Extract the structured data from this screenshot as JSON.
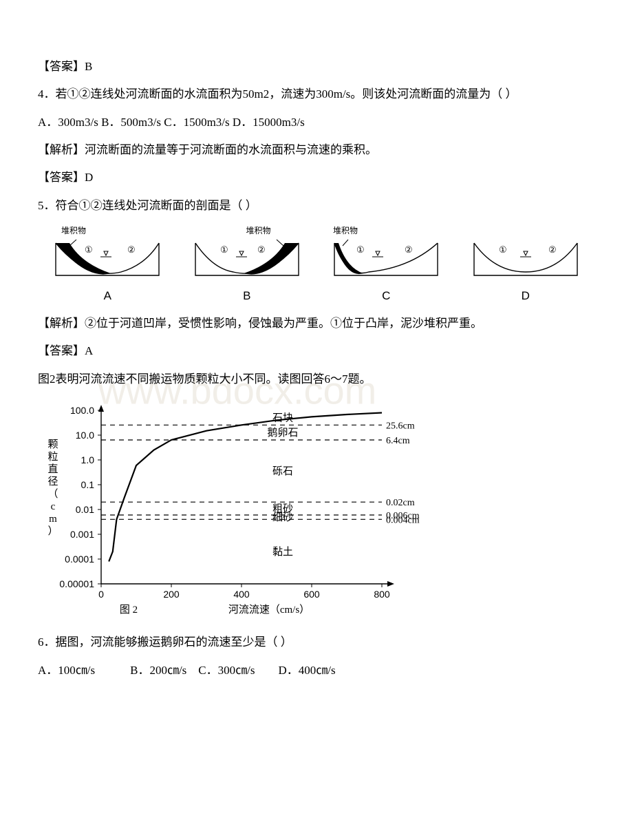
{
  "q3": {
    "answerPrefix": "【答案】",
    "answer": "B"
  },
  "q4": {
    "text": "4．若①②连线处河流断面的水流面积为50m2，流速为300m/s。则该处河流断面的流量为（ ）",
    "options": "A．300m3/s B．500m3/s C．1500m3/s D．15000m3/s",
    "explPrefix": "【解析】",
    "expl": "河流断面的流量等于河流断面的水流面积与流速的乘积。",
    "answerPrefix": "【答案】",
    "answer": "D"
  },
  "q5": {
    "text": "5．符合①②连线处河流断面的剖面是（ ）",
    "depositLabel": "堆积物",
    "diagrams": {
      "A": {
        "label": "A"
      },
      "B": {
        "label": "B"
      },
      "C": {
        "label": "C"
      },
      "D": {
        "label": "D"
      }
    },
    "explPrefix": "【解析】",
    "expl": "②位于河道凹岸，受惯性影响，侵蚀最为严重。①位于凸岸，泥沙堆积严重。",
    "answerPrefix": "【答案】",
    "answer": "A"
  },
  "intro67": "图2表明河流流速不同搬运物质颗粒大小不同。读图回答6～7题。",
  "watermark": "www.bdocx.com",
  "chart": {
    "type": "line",
    "x_axis_label": "河流流速（cm/s）",
    "y_axis_label": "颗粒直径（cm）",
    "figure_label": "图 2",
    "x_ticks": [
      0,
      200,
      400,
      600,
      800
    ],
    "y_ticks": [
      "100.0",
      "10.0",
      "1.0",
      "0.1",
      "0.01",
      "0.001",
      "0.0001",
      "0.00001"
    ],
    "y_scale": "log",
    "categories": [
      {
        "name": "石块",
        "boundary_cm": "25.6cm"
      },
      {
        "name": "鹅卵石",
        "boundary_cm": "6.4cm"
      },
      {
        "name": "砾石",
        "boundary_cm": "0.02cm"
      },
      {
        "name": "粗砂",
        "boundary_cm": "0.006cm"
      },
      {
        "name": "细砂",
        "boundary_cm": "0.004cm"
      },
      {
        "name": "黏土",
        "boundary_cm": null
      }
    ],
    "curve_points": [
      {
        "x": 22,
        "y": 8e-05
      },
      {
        "x": 33,
        "y": 0.0002
      },
      {
        "x": 44,
        "y": 0.004
      },
      {
        "x": 66,
        "y": 0.03
      },
      {
        "x": 100,
        "y": 0.6
      },
      {
        "x": 150,
        "y": 2.5
      },
      {
        "x": 200,
        "y": 6.4
      },
      {
        "x": 300,
        "y": 15
      },
      {
        "x": 400,
        "y": 25.6
      },
      {
        "x": 500,
        "y": 40
      },
      {
        "x": 600,
        "y": 55
      },
      {
        "x": 700,
        "y": 68
      },
      {
        "x": 800,
        "y": 80
      }
    ],
    "axis_color": "#000000",
    "curve_color": "#000000",
    "dash_color": "#000000",
    "background": "#ffffff",
    "font_size_axis": 14,
    "curve_width": 2.2,
    "dash_pattern": "7,6"
  },
  "q6": {
    "text": "6．据图，河流能够搬运鹅卵石的流速至少是（ ）",
    "options": "A．100㎝/s　　　B．200㎝/s　C．300㎝/s　　D．400㎝/s"
  }
}
